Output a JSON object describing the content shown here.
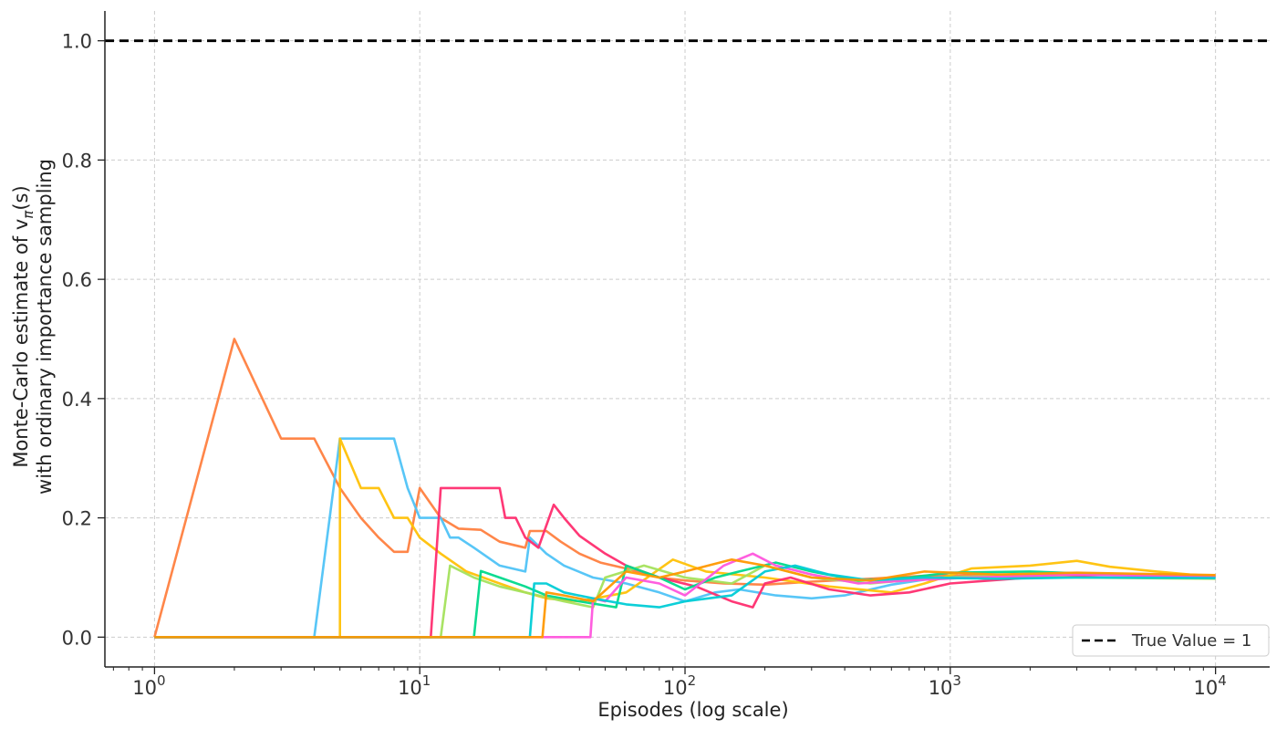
{
  "chart_data": {
    "type": "line",
    "title": "",
    "xlabel": "Episodes (log scale)",
    "ylabel_line1": "Monte-Carlo estimate of v",
    "ylabel_sub": "π",
    "ylabel_tail": "(s)",
    "ylabel_line2": "with ordinary importance sampling",
    "x_scale": "log",
    "xlim": [
      0.65,
      16000
    ],
    "ylim": [
      -0.05,
      1.05
    ],
    "x_ticks": [
      {
        "value": 1,
        "base": "10",
        "exp": "0"
      },
      {
        "value": 10,
        "base": "10",
        "exp": "1"
      },
      {
        "value": 100,
        "base": "10",
        "exp": "2"
      },
      {
        "value": 1000,
        "base": "10",
        "exp": "3"
      },
      {
        "value": 10000,
        "base": "10",
        "exp": "4"
      }
    ],
    "y_ticks": [
      0.0,
      0.2,
      0.4,
      0.6,
      0.8,
      1.0
    ],
    "y_tick_labels": [
      "0.0",
      "0.2",
      "0.4",
      "0.6",
      "0.8",
      "1.0"
    ],
    "grid": true,
    "reference_line": {
      "y": 1.0,
      "style": "dashed",
      "color": "#000000",
      "label": "True Value = 1"
    },
    "legend": {
      "position": "lower-right",
      "entries": [
        "True Value = 1"
      ]
    },
    "series": [
      {
        "color": "#ff7f3f",
        "points": [
          [
            1,
            0
          ],
          [
            2,
            0.5
          ],
          [
            3,
            0.333
          ],
          [
            4,
            0.333
          ],
          [
            5,
            0.25
          ],
          [
            6,
            0.2
          ],
          [
            7,
            0.167
          ],
          [
            8,
            0.143
          ],
          [
            9,
            0.143
          ],
          [
            10,
            0.25
          ],
          [
            12,
            0.2
          ],
          [
            14,
            0.182
          ],
          [
            17,
            0.18
          ],
          [
            20,
            0.16
          ],
          [
            25,
            0.15
          ],
          [
            26,
            0.178
          ],
          [
            30,
            0.178
          ],
          [
            34,
            0.16
          ],
          [
            40,
            0.14
          ],
          [
            48,
            0.125
          ],
          [
            60,
            0.115
          ],
          [
            80,
            0.1
          ],
          [
            100,
            0.095
          ],
          [
            140,
            0.09
          ],
          [
            200,
            0.088
          ],
          [
            300,
            0.093
          ],
          [
            500,
            0.098
          ],
          [
            800,
            0.103
          ],
          [
            1500,
            0.104
          ],
          [
            3000,
            0.105
          ],
          [
            6000,
            0.104
          ],
          [
            10000,
            0.103
          ]
        ]
      },
      {
        "color": "#4fc3f7",
        "points": [
          [
            1,
            0
          ],
          [
            4,
            0
          ],
          [
            5,
            0.333
          ],
          [
            8,
            0.333
          ],
          [
            9,
            0.25
          ],
          [
            10,
            0.2
          ],
          [
            12,
            0.2
          ],
          [
            13,
            0.167
          ],
          [
            14,
            0.167
          ],
          [
            16,
            0.15
          ],
          [
            20,
            0.12
          ],
          [
            25,
            0.11
          ],
          [
            26,
            0.167
          ],
          [
            30,
            0.14
          ],
          [
            35,
            0.12
          ],
          [
            45,
            0.1
          ],
          [
            60,
            0.09
          ],
          [
            80,
            0.075
          ],
          [
            100,
            0.06
          ],
          [
            130,
            0.075
          ],
          [
            160,
            0.08
          ],
          [
            220,
            0.07
          ],
          [
            300,
            0.065
          ],
          [
            400,
            0.07
          ],
          [
            600,
            0.088
          ],
          [
            900,
            0.1
          ],
          [
            1500,
            0.102
          ],
          [
            3000,
            0.1
          ],
          [
            6000,
            0.1
          ],
          [
            10000,
            0.1
          ]
        ]
      },
      {
        "color": "#ffc107",
        "points": [
          [
            1,
            0
          ],
          [
            5,
            0
          ],
          [
            5,
            0.333
          ],
          [
            6,
            0.25
          ],
          [
            7,
            0.25
          ],
          [
            8,
            0.2
          ],
          [
            9,
            0.2
          ],
          [
            10,
            0.167
          ],
          [
            12,
            0.14
          ],
          [
            15,
            0.11
          ],
          [
            20,
            0.09
          ],
          [
            25,
            0.075
          ],
          [
            30,
            0.065
          ],
          [
            40,
            0.06
          ],
          [
            60,
            0.075
          ],
          [
            90,
            0.13
          ],
          [
            120,
            0.11
          ],
          [
            200,
            0.1
          ],
          [
            350,
            0.085
          ],
          [
            600,
            0.075
          ],
          [
            800,
            0.09
          ],
          [
            1200,
            0.115
          ],
          [
            2000,
            0.12
          ],
          [
            3000,
            0.128
          ],
          [
            4000,
            0.118
          ],
          [
            6000,
            0.11
          ],
          [
            8000,
            0.105
          ],
          [
            10000,
            0.102
          ]
        ]
      },
      {
        "color": "#ff2d6f",
        "points": [
          [
            1,
            0
          ],
          [
            11,
            0
          ],
          [
            12,
            0.25
          ],
          [
            20,
            0.25
          ],
          [
            21,
            0.2
          ],
          [
            23,
            0.2
          ],
          [
            25,
            0.167
          ],
          [
            28,
            0.15
          ],
          [
            32,
            0.222
          ],
          [
            35,
            0.2
          ],
          [
            40,
            0.17
          ],
          [
            50,
            0.14
          ],
          [
            60,
            0.12
          ],
          [
            80,
            0.1
          ],
          [
            110,
            0.085
          ],
          [
            150,
            0.06
          ],
          [
            180,
            0.05
          ],
          [
            200,
            0.09
          ],
          [
            250,
            0.1
          ],
          [
            350,
            0.08
          ],
          [
            500,
            0.07
          ],
          [
            700,
            0.075
          ],
          [
            1000,
            0.09
          ],
          [
            2000,
            0.1
          ],
          [
            4000,
            0.105
          ],
          [
            10000,
            0.1
          ]
        ]
      },
      {
        "color": "#a4e25c",
        "points": [
          [
            1,
            0
          ],
          [
            12,
            0
          ],
          [
            13,
            0.12
          ],
          [
            16,
            0.1
          ],
          [
            20,
            0.085
          ],
          [
            25,
            0.075
          ],
          [
            35,
            0.06
          ],
          [
            45,
            0.05
          ],
          [
            50,
            0.1
          ],
          [
            70,
            0.12
          ],
          [
            100,
            0.1
          ],
          [
            150,
            0.09
          ],
          [
            200,
            0.12
          ],
          [
            300,
            0.1
          ],
          [
            500,
            0.09
          ],
          [
            800,
            0.098
          ],
          [
            1500,
            0.103
          ],
          [
            3000,
            0.1
          ],
          [
            10000,
            0.098
          ]
        ]
      },
      {
        "color": "#00d98b",
        "points": [
          [
            1,
            0
          ],
          [
            16,
            0
          ],
          [
            17,
            0.111
          ],
          [
            20,
            0.1
          ],
          [
            25,
            0.085
          ],
          [
            30,
            0.07
          ],
          [
            40,
            0.06
          ],
          [
            55,
            0.05
          ],
          [
            60,
            0.12
          ],
          [
            80,
            0.1
          ],
          [
            100,
            0.08
          ],
          [
            130,
            0.1
          ],
          [
            160,
            0.11
          ],
          [
            220,
            0.125
          ],
          [
            300,
            0.11
          ],
          [
            450,
            0.095
          ],
          [
            700,
            0.1
          ],
          [
            1000,
            0.108
          ],
          [
            2000,
            0.11
          ],
          [
            4000,
            0.105
          ],
          [
            10000,
            0.1
          ]
        ]
      },
      {
        "color": "#ff55dd",
        "points": [
          [
            1,
            0
          ],
          [
            44,
            0
          ],
          [
            45,
            0.065
          ],
          [
            50,
            0.06
          ],
          [
            60,
            0.1
          ],
          [
            80,
            0.09
          ],
          [
            100,
            0.07
          ],
          [
            140,
            0.12
          ],
          [
            180,
            0.14
          ],
          [
            220,
            0.12
          ],
          [
            300,
            0.105
          ],
          [
            450,
            0.09
          ],
          [
            700,
            0.095
          ],
          [
            1200,
            0.1
          ],
          [
            3000,
            0.105
          ],
          [
            10000,
            0.101
          ]
        ]
      },
      {
        "color": "#00ccd6",
        "points": [
          [
            1,
            0
          ],
          [
            26,
            0
          ],
          [
            27,
            0.09
          ],
          [
            30,
            0.09
          ],
          [
            35,
            0.075
          ],
          [
            45,
            0.065
          ],
          [
            60,
            0.055
          ],
          [
            80,
            0.05
          ],
          [
            100,
            0.06
          ],
          [
            150,
            0.07
          ],
          [
            200,
            0.11
          ],
          [
            260,
            0.12
          ],
          [
            350,
            0.105
          ],
          [
            500,
            0.095
          ],
          [
            800,
            0.1
          ],
          [
            1500,
            0.098
          ],
          [
            3000,
            0.1
          ],
          [
            10000,
            0.099
          ]
        ]
      },
      {
        "color": "#ff9800",
        "points": [
          [
            1,
            0
          ],
          [
            29,
            0
          ],
          [
            30,
            0.075
          ],
          [
            35,
            0.07
          ],
          [
            45,
            0.06
          ],
          [
            60,
            0.11
          ],
          [
            80,
            0.1
          ],
          [
            100,
            0.11
          ],
          [
            150,
            0.13
          ],
          [
            200,
            0.12
          ],
          [
            300,
            0.1
          ],
          [
            500,
            0.095
          ],
          [
            800,
            0.11
          ],
          [
            1500,
            0.105
          ],
          [
            3000,
            0.108
          ],
          [
            10000,
            0.104
          ]
        ]
      }
    ]
  }
}
